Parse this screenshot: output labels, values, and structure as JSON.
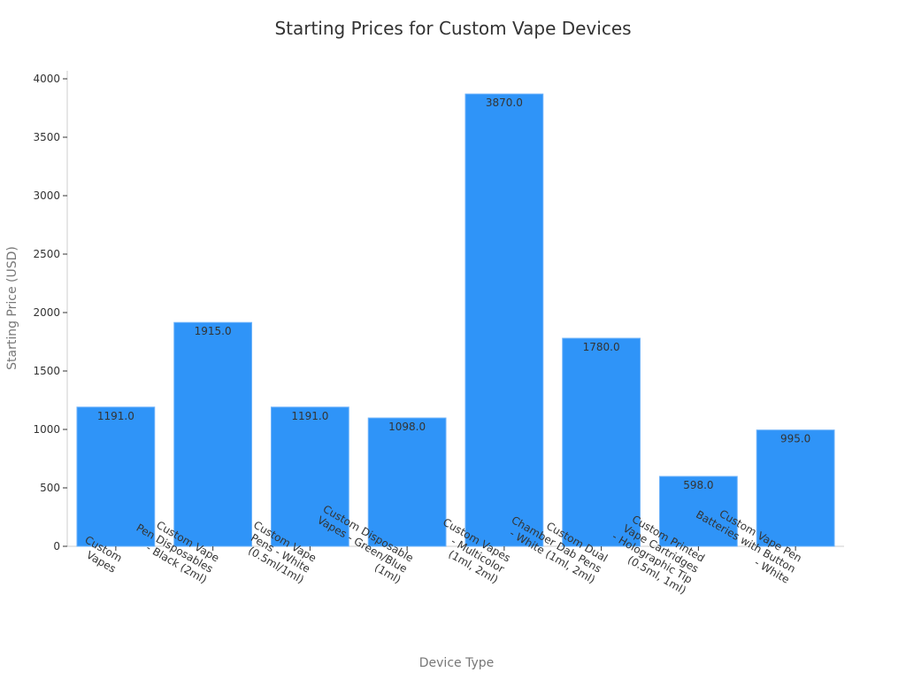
{
  "chart_data": {
    "type": "bar",
    "title": "Starting Prices for Custom Vape Devices",
    "xlabel": "Device Type",
    "ylabel": "Starting Price (USD)",
    "ylim": [
      0,
      4000
    ],
    "yticks": [
      0,
      500,
      1000,
      1500,
      2000,
      2500,
      3000,
      3500,
      4000
    ],
    "grid": false,
    "bar_color": "#2f94f8",
    "categories": [
      "Custom Vapes",
      "Custom Vape Pen Disposables - Black (2ml)",
      "Custom Vape Pens - White (0.5ml/1ml)",
      "Custom Disposable Vapes - Green/Blue (1ml)",
      "Custom Vapes - Multicolor (1ml, 2ml)",
      "Custom Dual Chamber Dab Pens - White (1ml, 2ml)",
      "Custom Printed Vape Cartridges - Holographic Tip (0.5ml, 1ml)",
      "Custom Vape Pen Batteries with Button - White"
    ],
    "category_lines": [
      [
        "Custom",
        "Vapes"
      ],
      [
        "Custom Vape",
        "Pen Disposables",
        "- Black (2ml)"
      ],
      [
        "Custom Vape",
        "Pens - White",
        "(0.5ml/1ml)"
      ],
      [
        "Custom Disposable",
        "Vapes - Green/Blue",
        "(1ml)"
      ],
      [
        "Custom Vapes",
        "- Multicolor",
        "(1ml, 2ml)"
      ],
      [
        "Custom Dual",
        "Chamber Dab Pens",
        "- White (1ml, 2ml)"
      ],
      [
        "Custom Printed",
        "Vape Cartridges",
        "- Holographic Tip",
        "(0.5ml, 1ml)"
      ],
      [
        "Custom Vape Pen",
        "Batteries with Button",
        "- White"
      ]
    ],
    "values": [
      1191.0,
      1915.0,
      1191.0,
      1098.0,
      3870.0,
      1780.0,
      598.0,
      995.0
    ],
    "value_labels": [
      "1191.0",
      "1915.0",
      "1191.0",
      "1098.0",
      "3870.0",
      "1780.0",
      "598.0",
      "995.0"
    ]
  }
}
